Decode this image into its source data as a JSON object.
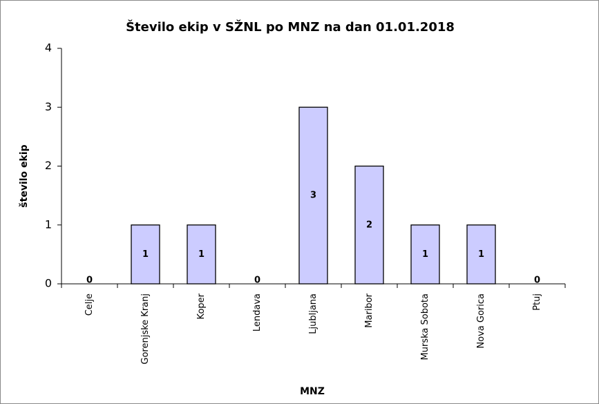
{
  "chart_data": {
    "type": "bar",
    "title": "Število ekip v SŽNL po MNZ na dan 01.01.2018",
    "x_label": "MNZ",
    "y_label": "število ekip",
    "categories": [
      "Celje",
      "Gorenjske Kranj",
      "Koper",
      "Lendava",
      "Ljubljana",
      "Maribor",
      "Murska Sobota",
      "Nova Gorica",
      "Ptuj"
    ],
    "values": [
      0,
      1,
      1,
      0,
      3,
      2,
      1,
      1,
      0
    ],
    "color": "#ccccff",
    "ylim": [
      0,
      4
    ],
    "yticks": [
      0,
      1,
      2,
      3,
      4
    ],
    "grid": false
  }
}
